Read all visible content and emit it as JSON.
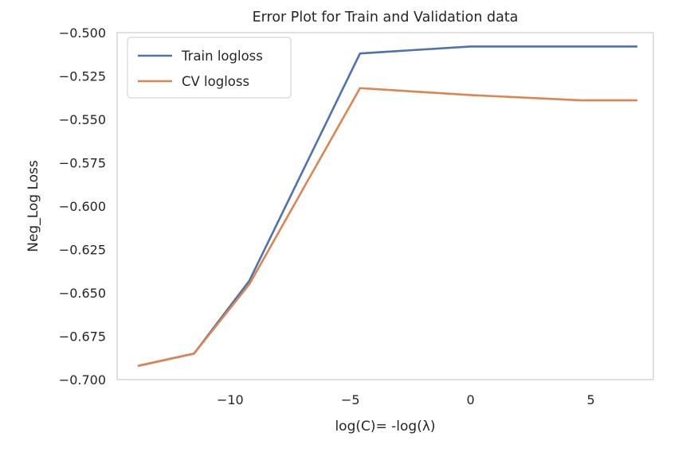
{
  "chart_data": {
    "type": "line",
    "title": "Error Plot for Train and Validation data",
    "xlabel": "log(C)= -log(λ)",
    "ylabel": "Neg_Log Loss",
    "xlim": [
      -14.7,
      7.6
    ],
    "ylim": [
      -0.7,
      -0.5
    ],
    "xticks": [
      -10,
      -5,
      0,
      5
    ],
    "xtick_labels": [
      "−10",
      "−5",
      "0",
      "5"
    ],
    "yticks": [
      -0.7,
      -0.675,
      -0.65,
      -0.625,
      -0.6,
      -0.575,
      -0.55,
      -0.525,
      -0.5
    ],
    "ytick_labels": [
      "−0.700",
      "−0.675",
      "−0.650",
      "−0.625",
      "−0.600",
      "−0.575",
      "−0.550",
      "−0.525",
      "−0.500"
    ],
    "grid": false,
    "legend_position": "top-left",
    "x": [
      -13.8,
      -11.5,
      -9.2,
      -4.6,
      0.0,
      4.6,
      6.9
    ],
    "series": [
      {
        "name": "Train logloss",
        "color": "#4c72b0",
        "values": [
          -0.692,
          -0.685,
          -0.643,
          -0.512,
          -0.508,
          -0.508,
          -0.508
        ]
      },
      {
        "name": "CV logloss",
        "color": "#dd8452",
        "values": [
          -0.692,
          -0.685,
          -0.645,
          -0.532,
          -0.536,
          -0.539,
          -0.539
        ]
      }
    ]
  }
}
